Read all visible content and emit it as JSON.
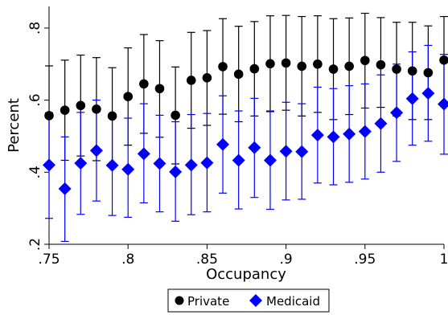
{
  "chart_data": {
    "type": "scatter",
    "xlabel": "Occupancy",
    "ylabel": "Percent",
    "xlim": [
      0.75,
      1.0
    ],
    "ylim": [
      0.2,
      0.86
    ],
    "xticks": [
      0.75,
      0.8,
      0.85,
      0.9,
      0.95,
      1.0
    ],
    "xtick_labels": [
      ".75",
      ".8",
      ".85",
      ".9",
      ".95",
      "1"
    ],
    "yticks": [
      0.2,
      0.4,
      0.6,
      0.8
    ],
    "ytick_labels": [
      ".2",
      ".4",
      ".6",
      ".8"
    ],
    "grid": false,
    "legend_position": "bottom-center",
    "x": [
      0.75,
      0.76,
      0.77,
      0.78,
      0.79,
      0.8,
      0.81,
      0.82,
      0.83,
      0.84,
      0.85,
      0.86,
      0.87,
      0.88,
      0.89,
      0.9,
      0.91,
      0.92,
      0.93,
      0.94,
      0.95,
      0.96,
      0.97,
      0.98,
      0.99,
      1.0
    ],
    "series": [
      {
        "name": "Private",
        "color": "#000000",
        "marker": "circle",
        "values": [
          0.557,
          0.572,
          0.585,
          0.575,
          0.556,
          0.61,
          0.645,
          0.632,
          0.558,
          0.655,
          0.662,
          0.693,
          0.672,
          0.687,
          0.701,
          0.703,
          0.694,
          0.7,
          0.686,
          0.694,
          0.71,
          0.698,
          0.686,
          0.681,
          0.676,
          0.711
        ],
        "lower": [
          0.415,
          0.433,
          0.445,
          0.432,
          0.415,
          0.475,
          0.508,
          0.497,
          0.423,
          0.522,
          0.53,
          0.561,
          0.54,
          0.556,
          0.568,
          0.572,
          0.556,
          0.566,
          0.546,
          0.56,
          0.578,
          0.58,
          0.556,
          0.546,
          0.546,
          0.59
        ],
        "upper": [
          0.695,
          0.711,
          0.725,
          0.718,
          0.69,
          0.745,
          0.782,
          0.765,
          0.692,
          0.788,
          0.793,
          0.826,
          0.805,
          0.818,
          0.834,
          0.835,
          0.832,
          0.834,
          0.826,
          0.828,
          0.841,
          0.829,
          0.816,
          0.816,
          0.806,
          0.832
        ]
      },
      {
        "name": "Medicaid",
        "color": "#0000ff",
        "marker": "diamond",
        "values": [
          0.42,
          0.354,
          0.425,
          0.46,
          0.419,
          0.408,
          0.451,
          0.424,
          0.401,
          0.42,
          0.426,
          0.477,
          0.433,
          0.468,
          0.433,
          0.458,
          0.457,
          0.503,
          0.498,
          0.506,
          0.513,
          0.535,
          0.565,
          0.604,
          0.619,
          0.589
        ],
        "lower": [
          0.272,
          0.208,
          0.283,
          0.32,
          0.28,
          0.275,
          0.315,
          0.29,
          0.264,
          0.282,
          0.29,
          0.342,
          0.298,
          0.33,
          0.297,
          0.323,
          0.325,
          0.37,
          0.365,
          0.372,
          0.381,
          0.4,
          0.43,
          0.475,
          0.486,
          0.45
        ],
        "upper": [
          0.565,
          0.498,
          0.566,
          0.6,
          0.558,
          0.55,
          0.59,
          0.558,
          0.54,
          0.56,
          0.563,
          0.612,
          0.57,
          0.605,
          0.57,
          0.594,
          0.59,
          0.636,
          0.632,
          0.64,
          0.645,
          0.67,
          0.7,
          0.734,
          0.752,
          0.727
        ]
      }
    ]
  }
}
